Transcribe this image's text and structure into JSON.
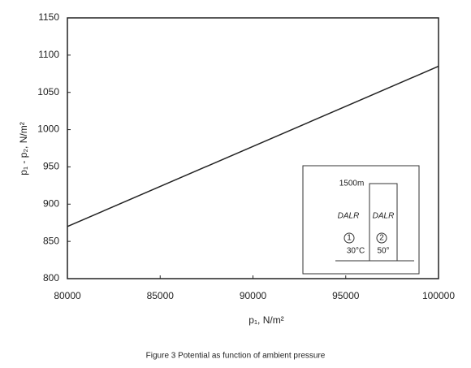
{
  "chart_data": {
    "type": "line",
    "xlabel": "p₁, N/m²",
    "ylabel": "p₁ - p₂, N/m²",
    "caption": "Figure 3  Potential as function of ambient pressure",
    "x": [
      80000,
      100000
    ],
    "series": [
      {
        "color": "#222222",
        "values": [
          870,
          1085
        ]
      }
    ],
    "xlim": [
      80000,
      100000
    ],
    "xticks": [
      80000,
      85000,
      90000,
      95000,
      100000
    ],
    "ylim": [
      800,
      1150
    ],
    "yticks": [
      800,
      850,
      900,
      950,
      1000,
      1050,
      1100,
      1150
    ],
    "inset": {
      "height": "1500m",
      "left_lapse": "DALR",
      "right_lapse": "DALR",
      "left_marker": "1",
      "right_marker": "2",
      "left_temp": "30°C",
      "right_temp": "50°"
    }
  }
}
